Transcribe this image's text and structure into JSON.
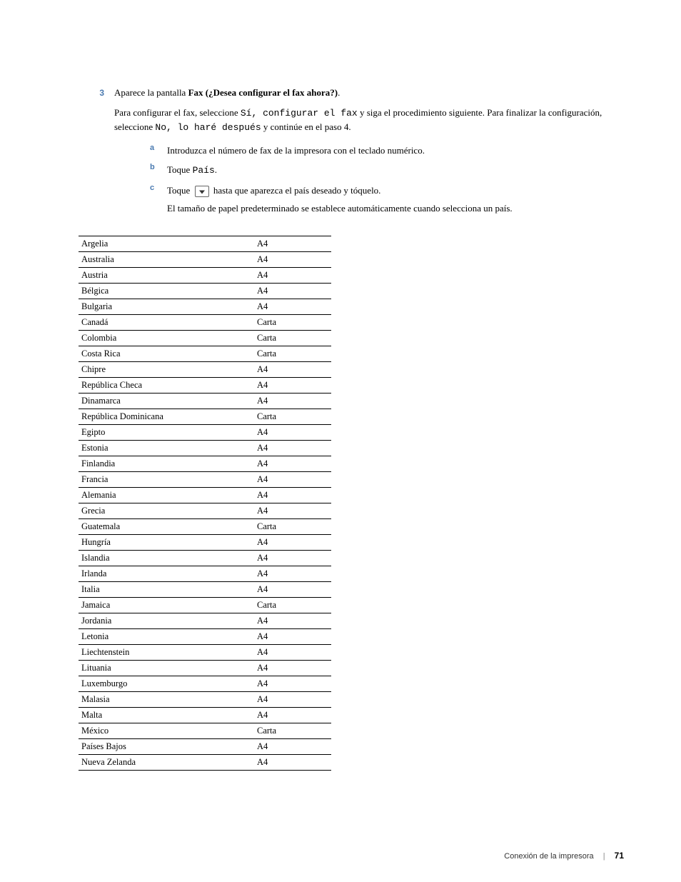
{
  "step": {
    "number": "3",
    "line1_pre": "Aparece la pantalla ",
    "line1_bold": "Fax (¿Desea configurar el fax ahora?)",
    "line1_post": ".",
    "line2_pre": "Para configurar el fax, seleccione ",
    "line2_mono1": "Sí, configurar el fax",
    "line2_mid": " y siga el procedimiento siguiente. Para finalizar la configuración, seleccione ",
    "line2_mono2": "No, lo haré después",
    "line2_post": " y continúe en el paso 4."
  },
  "subs": {
    "a": {
      "label": "a",
      "text": "Introduzca el número de fax de la impresora con el teclado numérico."
    },
    "b": {
      "label": "b",
      "pre": "Toque ",
      "mono": "País",
      "post": "."
    },
    "c": {
      "label": "c",
      "pre": "Toque ",
      "post": " hasta que aparezca el país deseado y tóquelo.",
      "note": "El tamaño de papel predeterminado se establece automáticamente cuando selecciona un país."
    }
  },
  "table": {
    "rows": [
      [
        "Argelia",
        "A4"
      ],
      [
        "Australia",
        "A4"
      ],
      [
        "Austria",
        "A4"
      ],
      [
        "Bélgica",
        "A4"
      ],
      [
        "Bulgaria",
        "A4"
      ],
      [
        "Canadá",
        "Carta"
      ],
      [
        "Colombia",
        "Carta"
      ],
      [
        "Costa Rica",
        "Carta"
      ],
      [
        "Chipre",
        "A4"
      ],
      [
        "República Checa",
        "A4"
      ],
      [
        "Dinamarca",
        "A4"
      ],
      [
        "República Dominicana",
        "Carta"
      ],
      [
        "Egipto",
        "A4"
      ],
      [
        "Estonia",
        "A4"
      ],
      [
        "Finlandia",
        "A4"
      ],
      [
        "Francia",
        "A4"
      ],
      [
        "Alemania",
        "A4"
      ],
      [
        "Grecia",
        "A4"
      ],
      [
        "Guatemala",
        "Carta"
      ],
      [
        "Hungría",
        "A4"
      ],
      [
        "Islandia",
        "A4"
      ],
      [
        "Irlanda",
        "A4"
      ],
      [
        "Italia",
        "A4"
      ],
      [
        "Jamaica",
        "Carta"
      ],
      [
        "Jordania",
        "A4"
      ],
      [
        "Letonia",
        "A4"
      ],
      [
        "Liechtenstein",
        "A4"
      ],
      [
        "Lituania",
        "A4"
      ],
      [
        "Luxemburgo",
        "A4"
      ],
      [
        "Malasia",
        "A4"
      ],
      [
        "Malta",
        "A4"
      ],
      [
        "México",
        "Carta"
      ],
      [
        "Países Bajos",
        "A4"
      ],
      [
        "Nueva Zelanda",
        "A4"
      ]
    ]
  },
  "footer": {
    "section": "Conexión de la impresora",
    "page": "71"
  }
}
